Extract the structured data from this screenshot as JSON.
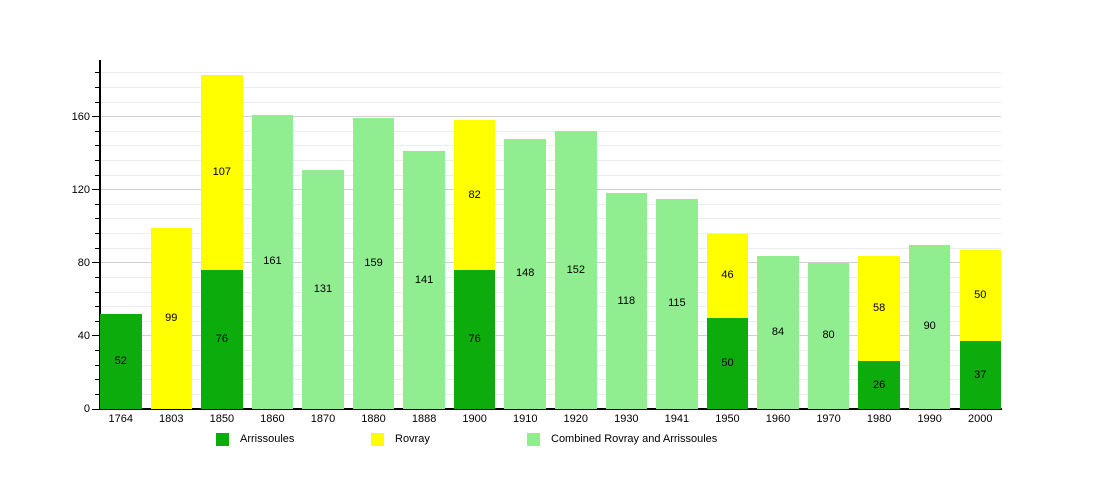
{
  "chart_data": {
    "type": "bar",
    "stacked": true,
    "categories": [
      "1764",
      "1803",
      "1850",
      "1860",
      "1870",
      "1880",
      "1888",
      "1900",
      "1910",
      "1920",
      "1930",
      "1941",
      "1950",
      "1960",
      "1970",
      "1980",
      "1990",
      "2000"
    ],
    "series": [
      {
        "name": "Arrissoules",
        "color": "#0cac0c",
        "values": [
          52,
          null,
          76,
          null,
          null,
          null,
          null,
          76,
          null,
          null,
          null,
          null,
          50,
          null,
          null,
          26,
          null,
          37
        ]
      },
      {
        "name": "Rovray",
        "color": "#ffff00",
        "values": [
          null,
          99,
          107,
          null,
          null,
          null,
          null,
          82,
          null,
          null,
          null,
          null,
          46,
          null,
          null,
          58,
          null,
          50
        ]
      },
      {
        "name": "Combined Rovray and Arrissoules",
        "color": "#90ee90",
        "values": [
          null,
          null,
          null,
          161,
          131,
          159,
          141,
          null,
          148,
          152,
          118,
          115,
          null,
          84,
          80,
          null,
          90,
          null
        ]
      }
    ],
    "ylim": [
      0,
      191
    ],
    "yticks": [
      0,
      40,
      80,
      120,
      160
    ],
    "minor_tick_step": 8,
    "grid": true,
    "legend_position": "bottom",
    "axis_color": "#000000",
    "major_grid_color": "#cfcfcf",
    "minor_grid_color": "#ececec",
    "label_color": "#000000",
    "background": "#ffffff"
  }
}
